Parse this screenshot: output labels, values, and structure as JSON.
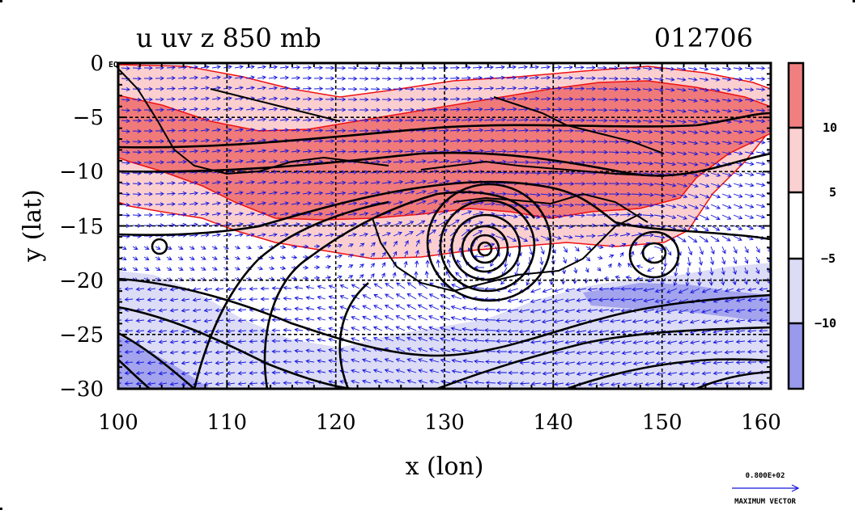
{
  "title": {
    "left": "u uv z 850 mb",
    "right": "012706"
  },
  "axes": {
    "xlabel": "x (lon)",
    "ylabel": "y (lat)",
    "xlim": [
      100,
      160
    ],
    "ylim": [
      -30,
      0
    ],
    "xticks": [
      "100",
      "110",
      "120",
      "130",
      "140",
      "150",
      "160"
    ],
    "yticks": [
      "0",
      "−5",
      "−10",
      "−15",
      "−20",
      "−25",
      "−30"
    ],
    "eq_label": "EQ",
    "grid": "dashed at every 10 lon and 5 lat"
  },
  "colorbar": {
    "labels": [
      "10",
      "5",
      "−5",
      "−10"
    ],
    "colors": [
      "#f08080",
      "#fbd0d0",
      "#ffffff",
      "#dcdcf6",
      "#9a9aec"
    ]
  },
  "fill_colors": {
    "strong_pos": "#f07a7a",
    "weak_pos": "#fbcfcf",
    "weak_neg": "#dcdcf6",
    "strong_neg": "#a4a4ee"
  },
  "line_colors": {
    "contour": "#000000",
    "shade_edge": "#ee1111",
    "vectors": "#1515dd"
  },
  "vector_key": {
    "value": "0.800E+02",
    "label": "MAXIMUM VECTOR"
  },
  "icons": [
    "vector-arrow-icon"
  ],
  "chart_data": {
    "type": "heatmap",
    "title": "u uv z 850 mb",
    "subtitle": "012706",
    "xlabel": "x (lon)",
    "ylabel": "y (lat)",
    "xlim": [
      100,
      160
    ],
    "ylim": [
      -30,
      0
    ],
    "contour_levels": [
      -10,
      -5,
      5,
      10
    ],
    "low_centers": [
      {
        "lon": 134,
        "lat": -17.2
      },
      {
        "lon": 149,
        "lat": -17.5
      }
    ],
    "positive_band_lat": [
      -2,
      -16
    ],
    "negative_region_lat": [
      -19,
      -30
    ]
  }
}
